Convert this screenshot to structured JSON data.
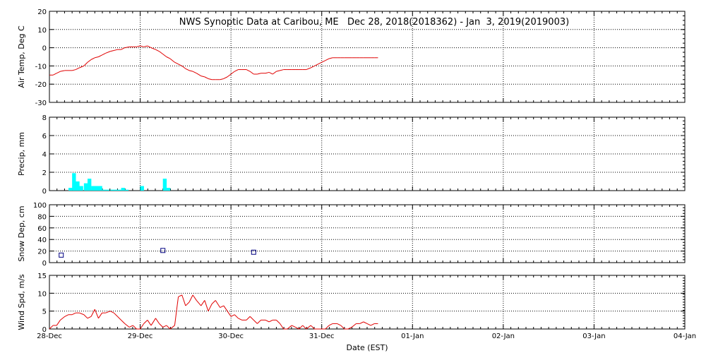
{
  "title": "NWS Synoptic Data at Caribou, ME   Dec 28, 2018(2018362) - Jan  3, 2019(2019003)",
  "xlabel": "Date (EST)",
  "x_ticks": [
    "28-Dec",
    "29-Dec",
    "30-Dec",
    "31-Dec",
    "01-Jan",
    "02-Jan",
    "03-Jan",
    "04-Jan"
  ],
  "colors": {
    "temp": "#e00000",
    "precip": "#00ffff",
    "snow": "#000080",
    "wind": "#e00000",
    "grid": "#000000"
  },
  "chart_data": [
    {
      "type": "line",
      "ylabel": "Air Temp, Deg C",
      "ylim": [
        -30,
        20
      ],
      "y_ticks": [
        "20",
        "10",
        "0",
        "-10",
        "-20",
        "-30"
      ],
      "x_unit": "days since 28-Dec 00:00",
      "x": [
        0,
        0.04,
        0.08,
        0.12,
        0.17,
        0.21,
        0.25,
        0.29,
        0.33,
        0.38,
        0.42,
        0.46,
        0.5,
        0.54,
        0.58,
        0.62,
        0.67,
        0.71,
        0.75,
        0.79,
        0.83,
        0.88,
        0.92,
        0.96,
        1.0,
        1.04,
        1.08,
        1.12,
        1.17,
        1.21,
        1.25,
        1.29,
        1.33,
        1.38,
        1.42,
        1.46,
        1.5,
        1.54,
        1.58,
        1.62,
        1.67,
        1.71,
        1.75,
        1.79,
        1.83,
        1.88,
        1.92,
        1.96,
        2.0,
        2.04,
        2.08,
        2.12,
        2.17,
        2.21,
        2.25,
        2.29,
        2.33,
        2.38,
        2.42,
        2.46,
        2.5,
        2.54,
        2.58,
        2.62,
        2.67,
        2.71,
        2.75,
        2.79,
        2.83,
        2.88,
        2.92,
        2.96,
        3.0,
        3.04,
        3.08,
        3.12,
        3.17,
        3.21,
        3.25,
        3.29,
        3.33,
        3.38,
        3.42,
        3.46,
        3.5,
        3.54,
        3.58,
        3.62
      ],
      "values": [
        -15,
        -15,
        -14,
        -13,
        -12.5,
        -12.5,
        -12.5,
        -12,
        -11,
        -10,
        -8,
        -6.5,
        -5.5,
        -5,
        -4,
        -3,
        -2,
        -1.5,
        -1,
        -1,
        0,
        0.5,
        0.5,
        0.5,
        1,
        0.5,
        1,
        0,
        -1,
        -2,
        -3.5,
        -5,
        -6,
        -8,
        -9,
        -10,
        -11.5,
        -12.5,
        -13,
        -14,
        -15.5,
        -16,
        -17,
        -17.5,
        -17.5,
        -17.5,
        -17,
        -16,
        -14.5,
        -13,
        -12,
        -12,
        -12,
        -13,
        -14.5,
        -14.5,
        -14,
        -14,
        -13.5,
        -14.5,
        -13,
        -12.5,
        -12,
        -12,
        -12,
        -12,
        -12,
        -12,
        -12,
        -11,
        -10,
        -9,
        -8,
        -7,
        -6,
        -5.5,
        -5.5,
        -5.5,
        -5.5,
        -5.5,
        -5.5,
        -5.5,
        -5.5,
        -5.5,
        -5.5,
        -5.5,
        -5.5,
        -5.5
      ]
    },
    {
      "type": "bar",
      "ylabel": "Precip, mm",
      "ylim": [
        0,
        8
      ],
      "y_ticks": [
        "8",
        "6",
        "4",
        "2",
        "0"
      ],
      "x_unit": "days since 28-Dec 00:00",
      "bar_width_days": 0.0417,
      "x": [
        0.21,
        0.25,
        0.29,
        0.33,
        0.38,
        0.42,
        0.46,
        0.5,
        0.54,
        0.58,
        0.62,
        0.67,
        0.71,
        0.75,
        0.79,
        0.83,
        1.0,
        1.25,
        1.29
      ],
      "values": [
        0.3,
        1.9,
        1.0,
        0.5,
        0.8,
        1.3,
        0.5,
        0.5,
        0.5,
        0.1,
        0.1,
        0.1,
        0.1,
        0.1,
        0.3,
        0.1,
        0.5,
        1.3,
        0.3
      ]
    },
    {
      "type": "scatter",
      "ylabel": "Snow Dep, cm",
      "ylim": [
        0,
        100
      ],
      "y_ticks": [
        "100",
        "80",
        "60",
        "40",
        "20",
        "0"
      ],
      "x_unit": "days since 28-Dec 00:00",
      "x": [
        0.13,
        1.25,
        2.25
      ],
      "values": [
        13,
        21,
        18
      ]
    },
    {
      "type": "line",
      "ylabel": "Wind Spd, m/s",
      "ylim": [
        0,
        15
      ],
      "y_ticks": [
        "15",
        "10",
        "5",
        "0"
      ],
      "x_unit": "days since 28-Dec 00:00",
      "x": [
        0,
        0.04,
        0.08,
        0.12,
        0.17,
        0.21,
        0.25,
        0.29,
        0.33,
        0.38,
        0.42,
        0.46,
        0.5,
        0.54,
        0.58,
        0.62,
        0.67,
        0.71,
        0.75,
        0.79,
        0.83,
        0.88,
        0.92,
        0.96,
        1.0,
        1.04,
        1.08,
        1.12,
        1.17,
        1.21,
        1.25,
        1.29,
        1.33,
        1.38,
        1.42,
        1.46,
        1.5,
        1.54,
        1.58,
        1.62,
        1.67,
        1.71,
        1.75,
        1.79,
        1.83,
        1.88,
        1.92,
        1.96,
        2.0,
        2.04,
        2.08,
        2.12,
        2.17,
        2.21,
        2.25,
        2.29,
        2.33,
        2.38,
        2.42,
        2.46,
        2.5,
        2.54,
        2.58,
        2.62,
        2.67,
        2.71,
        2.75,
        2.79,
        2.83,
        2.88,
        2.92,
        2.96,
        3.0,
        3.04,
        3.08,
        3.12,
        3.17,
        3.21,
        3.25,
        3.29,
        3.33,
        3.38,
        3.42,
        3.46,
        3.5,
        3.54,
        3.58,
        3.62
      ],
      "values": [
        0,
        1,
        1,
        2.5,
        3.5,
        4,
        4,
        4.5,
        4.5,
        4,
        3,
        3.5,
        5.5,
        3,
        4.5,
        4.5,
        5,
        4.5,
        3.5,
        2.5,
        1.5,
        0.5,
        1,
        0,
        0,
        1.5,
        2.5,
        1,
        3,
        1.5,
        0.5,
        1,
        0,
        1,
        9,
        9.5,
        6.5,
        7.5,
        9.5,
        8,
        6.5,
        8,
        5,
        7,
        8,
        6,
        6.5,
        5,
        3.5,
        4,
        3,
        2.5,
        2.5,
        3.5,
        2.5,
        1.5,
        2.5,
        2.5,
        2,
        2.5,
        2.5,
        1.5,
        0,
        0,
        1,
        0.5,
        0,
        1,
        0,
        1,
        0,
        0,
        0,
        0,
        1,
        1.5,
        1.5,
        1,
        0,
        0,
        0.5,
        1.5,
        1.5,
        2,
        1.5,
        1,
        1.5,
        1.5
      ]
    }
  ]
}
